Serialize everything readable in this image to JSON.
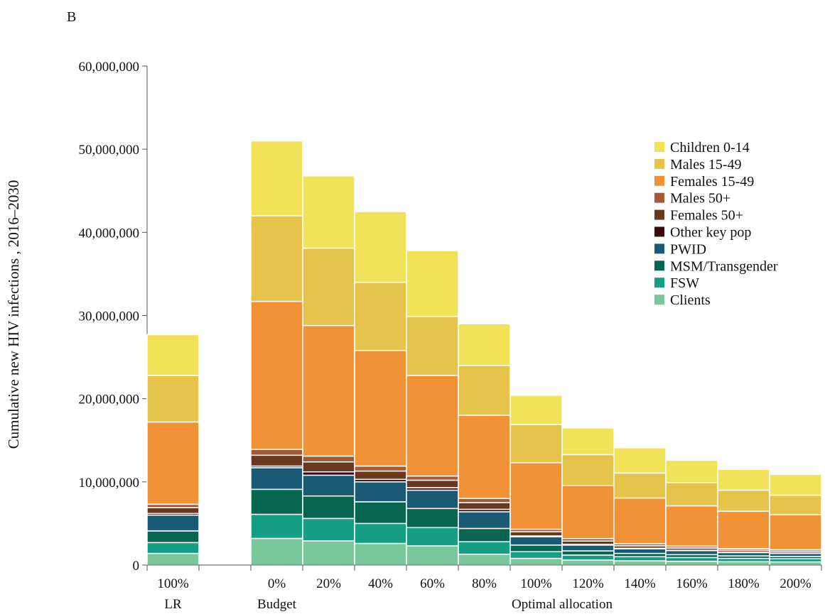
{
  "panel_label": "B",
  "chart_data": {
    "type": "bar",
    "stacked": true,
    "ylabel": "Cumulative new HIV  infections , 2016–2030",
    "ylim": [
      0,
      60000000
    ],
    "yticks": [
      {
        "value": 0,
        "label": "0"
      },
      {
        "value": 10000000,
        "label": "10,000,000"
      },
      {
        "value": 20000000,
        "label": "20,000,000"
      },
      {
        "value": 30000000,
        "label": "30,000,000"
      },
      {
        "value": 40000000,
        "label": "40,000,000"
      },
      {
        "value": 50000000,
        "label": "50,000,000"
      },
      {
        "value": 60000000,
        "label": "60,000,000"
      }
    ],
    "categories": [
      "100%",
      "0%",
      "20%",
      "40%",
      "60%",
      "80%",
      "100%",
      "120%",
      "140%",
      "160%",
      "180%",
      "200%"
    ],
    "groups": [
      {
        "label": "LR",
        "categories": [
          0
        ]
      },
      {
        "label": "Budget",
        "categories": [
          1
        ]
      },
      {
        "label": "Optimal allocation",
        "categories": [
          2,
          3,
          4,
          5,
          6,
          7,
          8,
          9,
          10,
          11
        ]
      }
    ],
    "legend_position": "right",
    "grid": false,
    "series": [
      {
        "name": "Clients",
        "color": "#79c79a",
        "values": [
          1400000,
          3200000,
          2900000,
          2600000,
          2300000,
          1300000,
          800000,
          600000,
          500000,
          450000,
          400000,
          380000
        ]
      },
      {
        "name": "FSW",
        "color": "#149e83",
        "values": [
          1300000,
          2900000,
          2700000,
          2400000,
          2200000,
          1500000,
          800000,
          600000,
          500000,
          450000,
          400000,
          370000
        ]
      },
      {
        "name": "MSM/Transgender",
        "color": "#076651",
        "values": [
          1400000,
          3000000,
          2700000,
          2600000,
          2300000,
          1600000,
          800000,
          500000,
          400000,
          350000,
          300000,
          280000
        ]
      },
      {
        "name": "PWID",
        "color": "#1a5a74",
        "values": [
          1900000,
          2600000,
          2500000,
          2400000,
          2200000,
          2000000,
          1000000,
          700000,
          550000,
          480000,
          400000,
          370000
        ]
      },
      {
        "name": "Other key pop",
        "color": "#3a0a12",
        "values": [
          200000,
          200000,
          400000,
          300000,
          300000,
          300000,
          100000,
          80000,
          60000,
          50000,
          40000,
          40000
        ]
      },
      {
        "name": "Females 50+",
        "color": "#6a381f",
        "values": [
          700000,
          1300000,
          1200000,
          1000000,
          900000,
          800000,
          500000,
          400000,
          300000,
          260000,
          220000,
          210000
        ]
      },
      {
        "name": "Males 50+",
        "color": "#a45a34",
        "values": [
          400000,
          700000,
          700000,
          600000,
          500000,
          500000,
          300000,
          300000,
          250000,
          230000,
          200000,
          190000
        ]
      },
      {
        "name": "Females 15-49",
        "color": "#f29236",
        "values": [
          9900000,
          17800000,
          15700000,
          13900000,
          12100000,
          10000000,
          8000000,
          6400000,
          5500000,
          4850000,
          4500000,
          4200000
        ]
      },
      {
        "name": "Males 15-49",
        "color": "#e6c34b",
        "values": [
          5600000,
          10300000,
          9300000,
          8200000,
          7100000,
          6000000,
          4600000,
          3700000,
          3000000,
          2800000,
          2540000,
          2360000
        ]
      },
      {
        "name": "Children 0-14",
        "color": "#f1e25a",
        "values": [
          4900000,
          9000000,
          8700000,
          8500000,
          7900000,
          5000000,
          3500000,
          3200000,
          3040000,
          2680000,
          2500000,
          2500000
        ]
      }
    ]
  }
}
